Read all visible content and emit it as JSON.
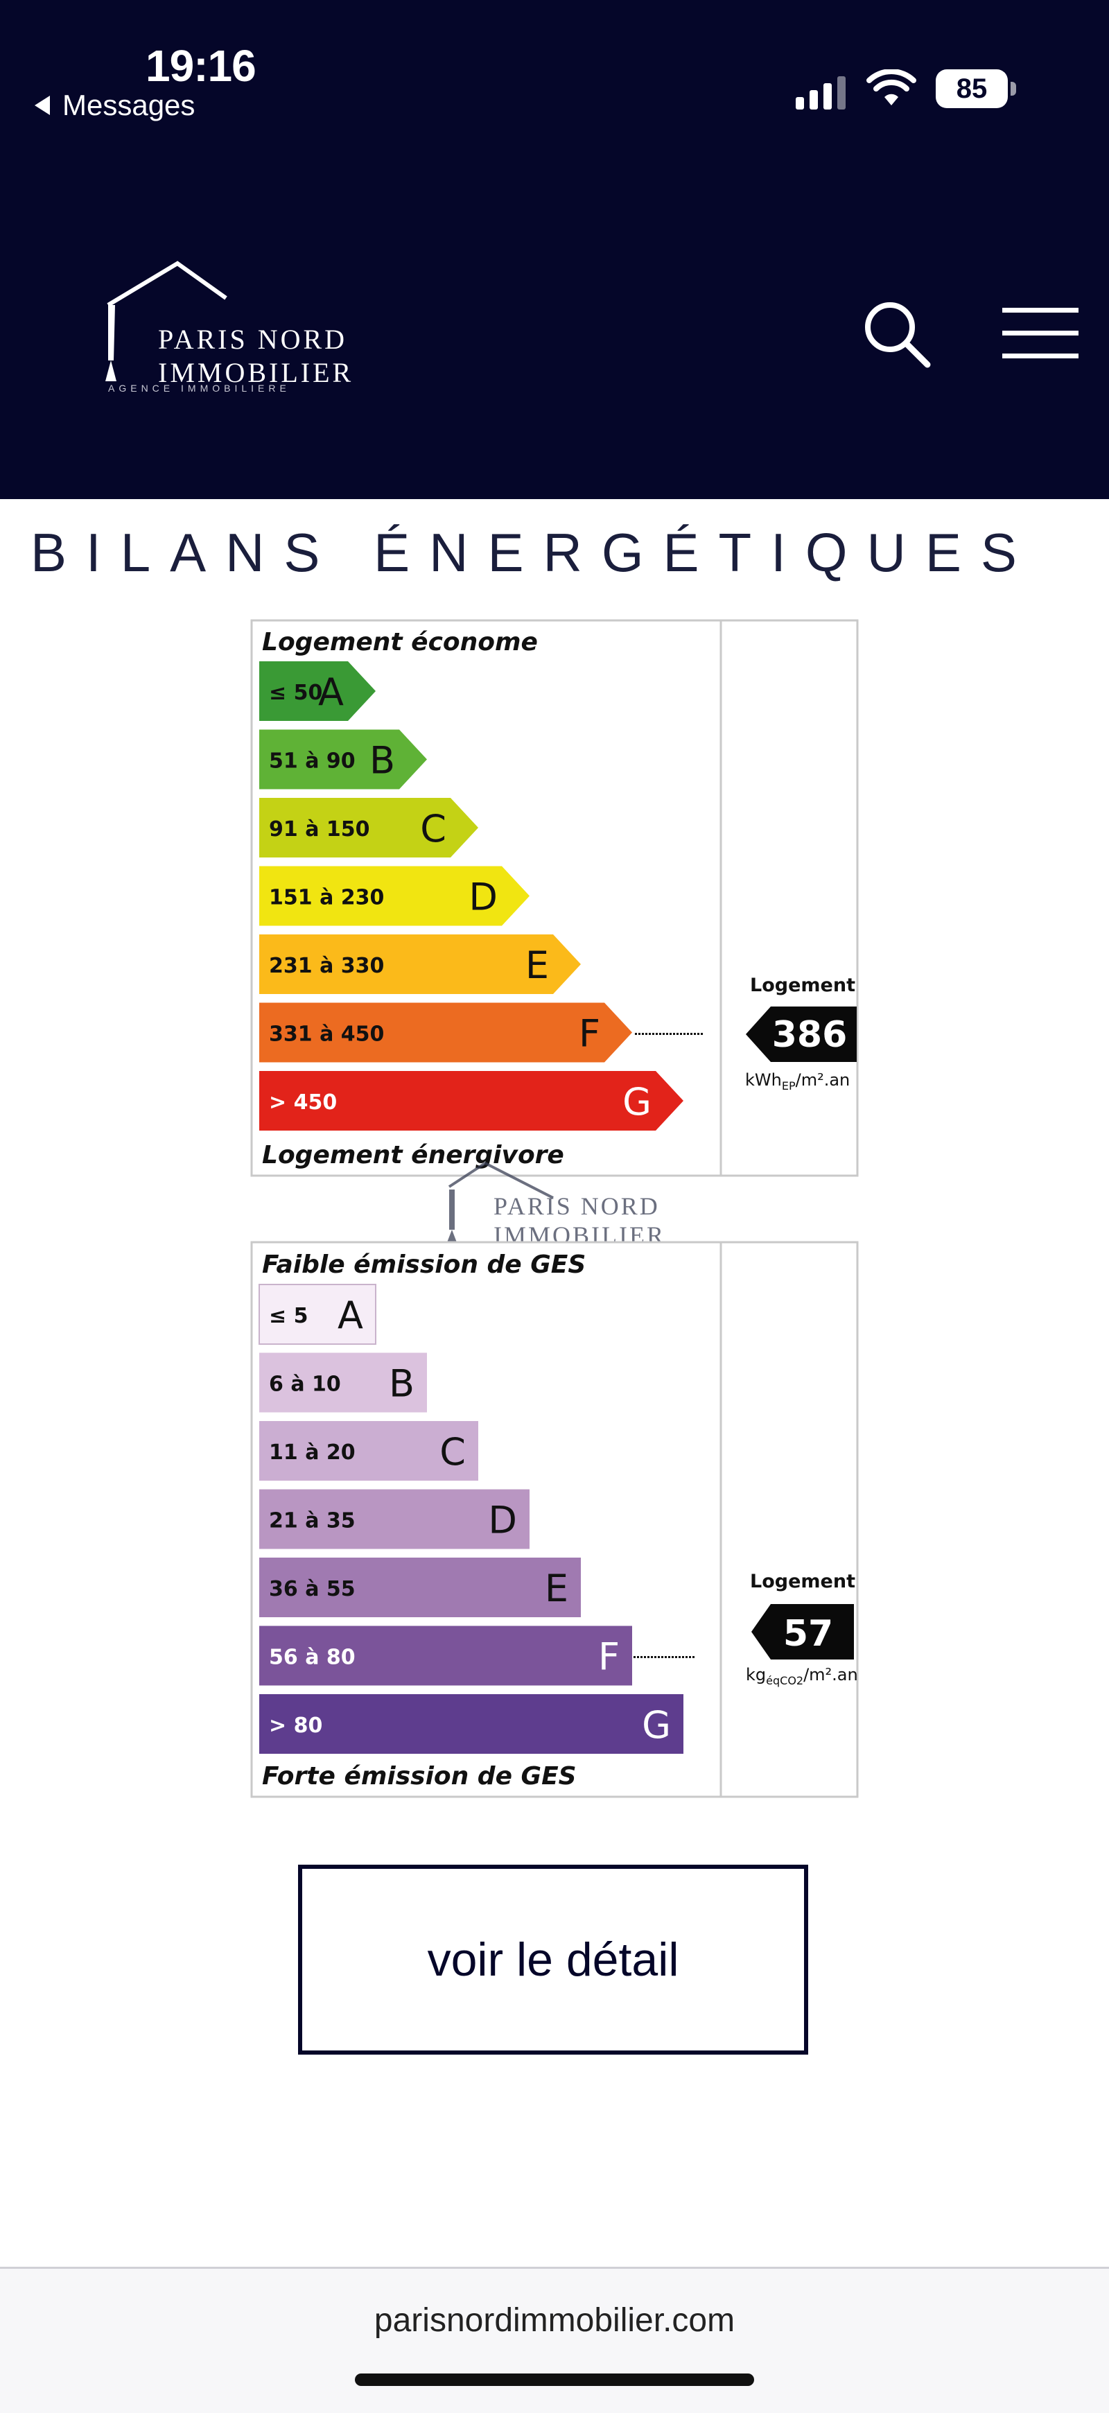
{
  "status_bar": {
    "time": "19:16",
    "back_label": "Messages",
    "battery": "85"
  },
  "logo": {
    "line1": "PARIS NORD",
    "line2": "IMMOBILIER",
    "tagline": "AGENCE IMMOBILIERE"
  },
  "header": {
    "search_icon": "search-icon",
    "menu_icon": "menu-icon"
  },
  "section_title": "BILANS ÉNERGÉTIQUES",
  "energy_chart": {
    "top_label": "Logement économe",
    "bottom_label": "Logement énergivore",
    "classes": [
      {
        "range": "≤ 50",
        "letter": "A",
        "color": "#3a9a35"
      },
      {
        "range": "51 à 90",
        "letter": "B",
        "color": "#5fb236"
      },
      {
        "range": "91 à 150",
        "letter": "C",
        "color": "#c4d215"
      },
      {
        "range": "151 à 230",
        "letter": "D",
        "color": "#f1e511"
      },
      {
        "range": "231 à 330",
        "letter": "E",
        "color": "#fbba1a"
      },
      {
        "range": "331 à 450",
        "letter": "F",
        "color": "#ec6b21"
      },
      {
        "range": "> 450",
        "letter": "G",
        "color": "#e2231a"
      }
    ],
    "current_class": "F",
    "value_label": "Logement",
    "value": "386",
    "unit_main": "kWh",
    "unit_sub": "EP",
    "unit_tail": "/m².an"
  },
  "ges_chart": {
    "top_label": "Faible émission de GES",
    "bottom_label": "Forte émission de GES",
    "classes": [
      {
        "range": "≤ 5",
        "letter": "A",
        "color": "#f6edf7"
      },
      {
        "range": "6 à 10",
        "letter": "B",
        "color": "#dbc2de"
      },
      {
        "range": "11 à 20",
        "letter": "C",
        "color": "#cbaed2"
      },
      {
        "range": "21 à 35",
        "letter": "D",
        "color": "#b996c2"
      },
      {
        "range": "36 à 55",
        "letter": "E",
        "color": "#a07ab1"
      },
      {
        "range": "56 à 80",
        "letter": "F",
        "color": "#7b549a"
      },
      {
        "range": "> 80",
        "letter": "G",
        "color": "#5e3d8e"
      }
    ],
    "current_class": "F",
    "value_label": "Logement",
    "value": "57",
    "unit_main": "kg",
    "unit_sub": "éqCO2",
    "unit_tail": "/m².an"
  },
  "watermark": {
    "line1": "PARIS NORD",
    "line2": "IMMOBILIER"
  },
  "detail_button": "voir le détail",
  "footer_url": "parisnordimmobilier.com"
}
